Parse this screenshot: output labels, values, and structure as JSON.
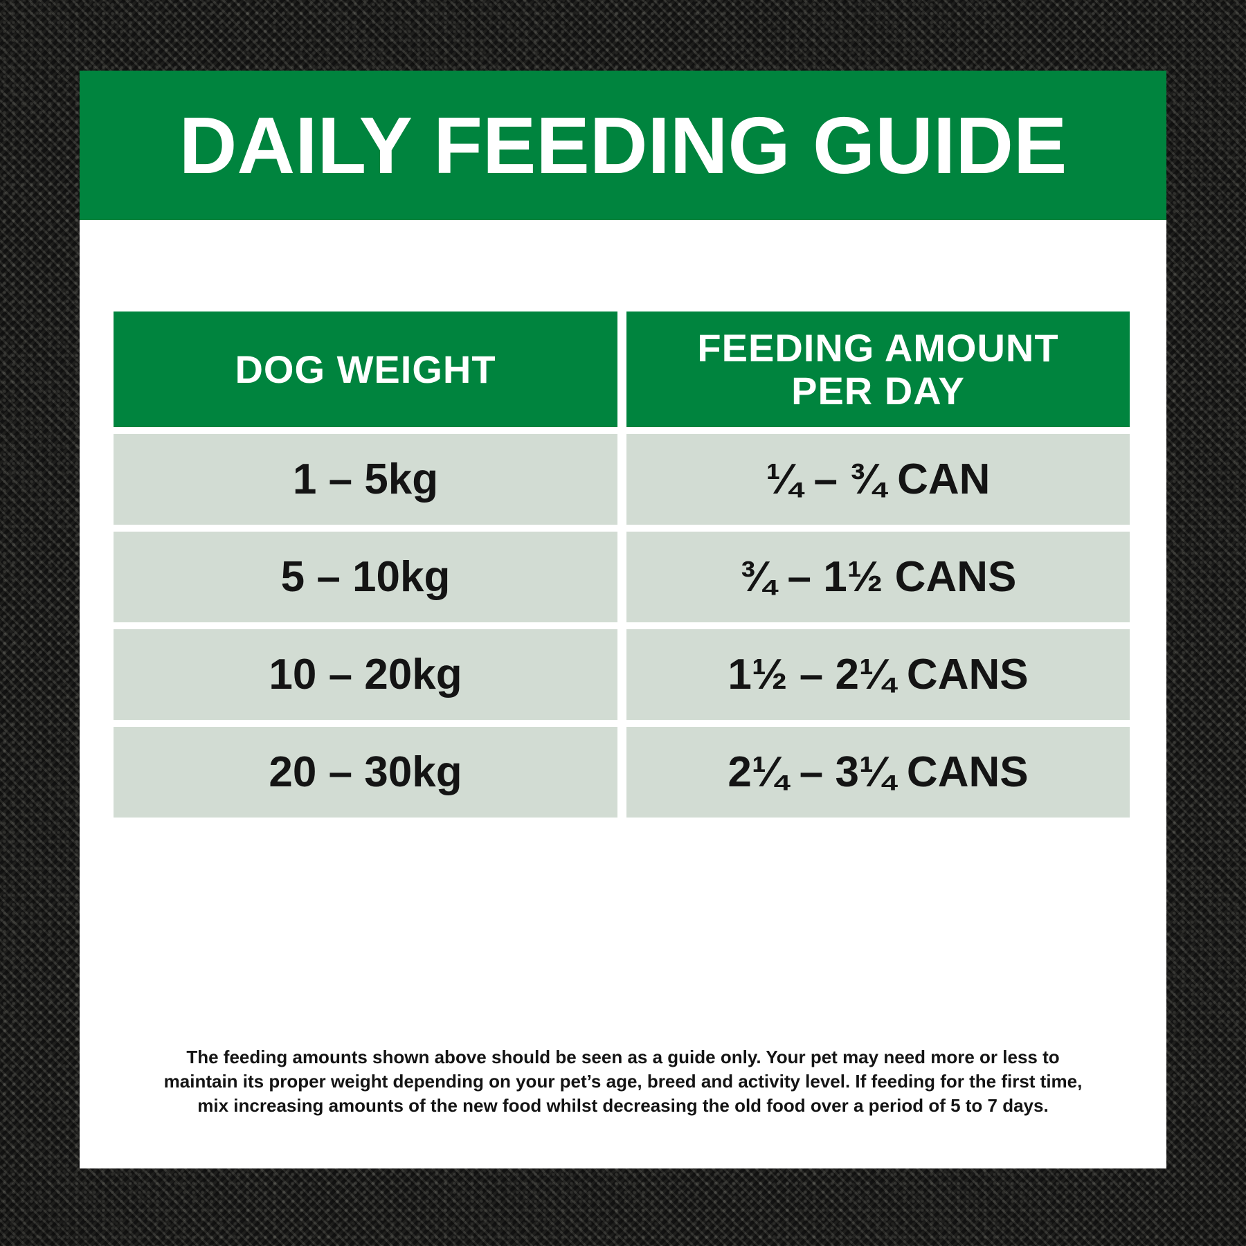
{
  "title": "DAILY FEEDING GUIDE",
  "table": {
    "header": {
      "weight": "DOG WEIGHT",
      "amount_line1": "FEEDING AMOUNT",
      "amount_line2": "PER DAY"
    },
    "rows": [
      {
        "weight": "1 – 5kg",
        "amount": "¼ – ¾ CAN"
      },
      {
        "weight": "5 – 10kg",
        "amount": "¾ – 1½ CANS"
      },
      {
        "weight": "10 – 20kg",
        "amount": "1½ – 2¼ CANS"
      },
      {
        "weight": "20 – 30kg",
        "amount": "2¼ – 3¼ CANS"
      }
    ]
  },
  "footer": {
    "lines": [
      "The feeding amounts shown above should be seen as a guide only. Your pet may need more or less to",
      "maintain its proper weight depending on your pet’s age, breed and activity level. If feeding for the first time,",
      "mix increasing amounts of the new food whilst decreasing the old food over a period of 5 to 7 days."
    ]
  },
  "colors": {
    "brand_green": "#00843E",
    "row_background": "#D2DCD3",
    "card_background": "#FFFFFF",
    "text_dark": "#141414",
    "fabric_background": "#262624"
  }
}
